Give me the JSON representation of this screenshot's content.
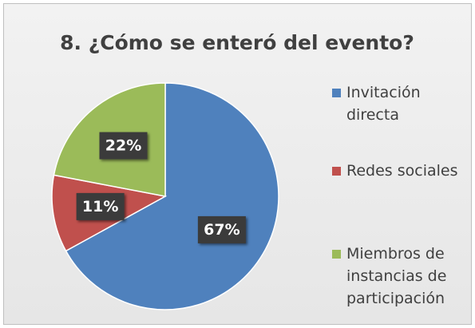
{
  "chart_data": {
    "type": "pie",
    "title": "8. ¿Cómo se enteró del evento?",
    "categories": [
      "Invitación directa",
      "Redes sociales",
      "Miembros de instancias de participación"
    ],
    "values": [
      67,
      11,
      22
    ],
    "value_labels": [
      "67%",
      "11%",
      "22%"
    ],
    "colors": [
      "#4f81bd",
      "#c0504d",
      "#9bbb59"
    ],
    "legend": "right"
  }
}
